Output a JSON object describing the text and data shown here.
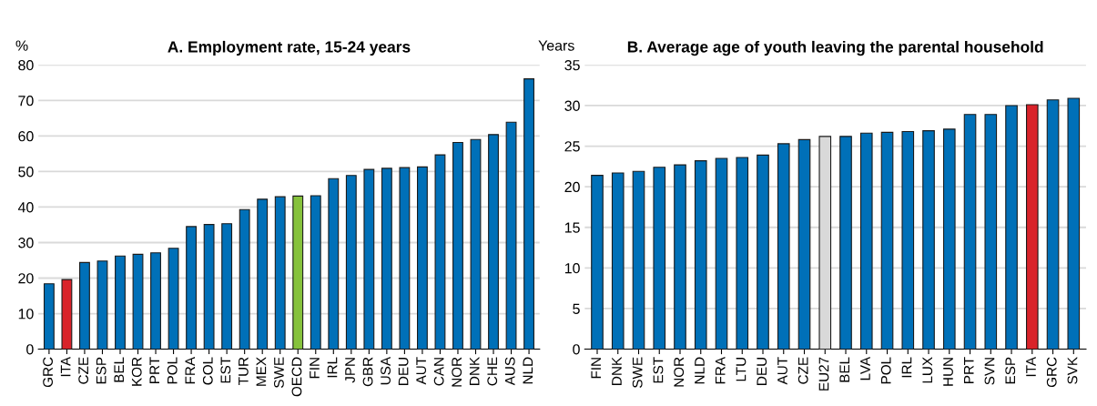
{
  "chart_data": [
    {
      "type": "bar",
      "title": "A. Employment rate, 15-24 years",
      "ylabel": "%",
      "categories": [
        "GRC",
        "ITA",
        "CZE",
        "ESP",
        "BEL",
        "KOR",
        "PRT",
        "POL",
        "FRA",
        "COL",
        "EST",
        "TUR",
        "MEX",
        "SWE",
        "OECD",
        "FIN",
        "IRL",
        "JPN",
        "GBR",
        "USA",
        "DEU",
        "AUT",
        "CAN",
        "NOR",
        "DNK",
        "CHE",
        "AUS",
        "NLD"
      ],
      "values": [
        18.4,
        19.6,
        24.4,
        24.8,
        26.2,
        26.7,
        27.1,
        28.4,
        34.5,
        35.1,
        35.3,
        39.3,
        42.2,
        42.9,
        43.1,
        43.2,
        48.0,
        48.9,
        50.6,
        50.9,
        51.1,
        51.3,
        54.7,
        58.2,
        59.0,
        60.4,
        63.9,
        76.1
      ],
      "colors": [
        "#0070b8",
        "#d9232a",
        "#0070b8",
        "#0070b8",
        "#0070b8",
        "#0070b8",
        "#0070b8",
        "#0070b8",
        "#0070b8",
        "#0070b8",
        "#0070b8",
        "#0070b8",
        "#0070b8",
        "#0070b8",
        "#86c23c",
        "#0070b8",
        "#0070b8",
        "#0070b8",
        "#0070b8",
        "#0070b8",
        "#0070b8",
        "#0070b8",
        "#0070b8",
        "#0070b8",
        "#0070b8",
        "#0070b8",
        "#0070b8",
        "#0070b8"
      ],
      "ylim": [
        0,
        80
      ],
      "yticks": [
        0,
        10,
        20,
        30,
        40,
        50,
        60,
        70,
        80
      ],
      "grid": "y"
    },
    {
      "type": "bar",
      "title": "B. Average age of youth leaving the parental household",
      "ylabel": "Years",
      "categories": [
        "FIN",
        "DNK",
        "SWE",
        "EST",
        "NOR",
        "NLD",
        "FRA",
        "LTU",
        "DEU",
        "AUT",
        "CZE",
        "EU27",
        "BEL",
        "LVA",
        "POL",
        "IRL",
        "LUX",
        "HUN",
        "PRT",
        "SVN",
        "ESP",
        "ITA",
        "GRC",
        "SVK"
      ],
      "values": [
        21.4,
        21.7,
        21.9,
        22.4,
        22.7,
        23.2,
        23.5,
        23.6,
        23.9,
        25.3,
        25.8,
        26.2,
        26.2,
        26.6,
        26.7,
        26.8,
        26.9,
        27.1,
        28.9,
        28.9,
        30.0,
        30.1,
        30.7,
        30.9
      ],
      "colors": [
        "#0070b8",
        "#0070b8",
        "#0070b8",
        "#0070b8",
        "#0070b8",
        "#0070b8",
        "#0070b8",
        "#0070b8",
        "#0070b8",
        "#0070b8",
        "#0070b8",
        "#d9d9d9",
        "#0070b8",
        "#0070b8",
        "#0070b8",
        "#0070b8",
        "#0070b8",
        "#0070b8",
        "#0070b8",
        "#0070b8",
        "#0070b8",
        "#d9232a",
        "#0070b8",
        "#0070b8"
      ],
      "ylim": [
        0,
        35
      ],
      "yticks": [
        0,
        5,
        10,
        15,
        20,
        25,
        30,
        35
      ],
      "grid": "y"
    }
  ]
}
